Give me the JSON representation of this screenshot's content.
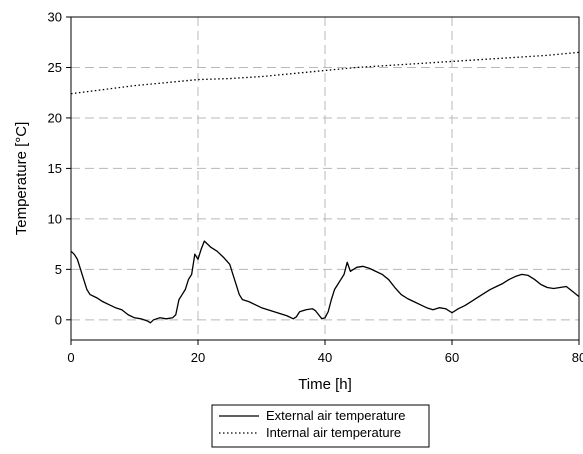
{
  "chart_data": {
    "type": "line",
    "title": "",
    "xlabel": "Time [h]",
    "ylabel": "Temperature [°C]",
    "xlim": [
      0,
      80
    ],
    "ylim": [
      -2,
      30
    ],
    "xticks": [
      0,
      20,
      40,
      60,
      80
    ],
    "yticks": [
      0,
      5,
      10,
      15,
      20,
      25,
      30
    ],
    "grid": true,
    "legend_position": "bottom-center",
    "series": [
      {
        "name": "External air temperature",
        "line_style": "solid",
        "color": "#000000",
        "x": [
          0,
          0.5,
          1,
          1.5,
          2,
          2.5,
          3,
          4,
          5,
          6,
          7,
          8,
          9,
          10,
          11,
          12,
          12.5,
          13,
          14,
          15,
          16,
          16.5,
          17,
          17.5,
          18,
          18.5,
          19,
          19.5,
          20,
          20.5,
          21,
          21.5,
          22,
          23,
          24,
          25,
          25.5,
          26,
          26.5,
          27,
          28,
          29,
          30,
          31,
          32,
          33,
          34,
          35,
          35.5,
          36,
          37,
          38,
          38.5,
          39,
          39.5,
          40,
          40.5,
          41,
          41.5,
          42,
          42.5,
          43,
          43.5,
          44,
          45,
          46,
          47,
          48,
          49,
          50,
          51,
          52,
          53,
          54,
          55,
          56,
          57,
          58,
          59,
          60,
          61,
          62,
          63,
          64,
          65,
          66,
          67,
          68,
          69,
          70,
          71,
          72,
          73,
          74,
          75,
          76,
          77,
          78,
          79,
          80
        ],
        "y": [
          6.8,
          6.5,
          6.0,
          5.0,
          4.0,
          3.0,
          2.5,
          2.2,
          1.8,
          1.5,
          1.2,
          1.0,
          0.5,
          0.2,
          0.1,
          -0.1,
          -0.3,
          0.0,
          0.2,
          0.1,
          0.2,
          0.5,
          2.0,
          2.5,
          3.0,
          4.0,
          4.5,
          6.5,
          6.0,
          7.0,
          7.8,
          7.5,
          7.2,
          6.8,
          6.2,
          5.5,
          4.5,
          3.5,
          2.5,
          2.0,
          1.8,
          1.5,
          1.2,
          1.0,
          0.8,
          0.6,
          0.4,
          0.1,
          0.3,
          0.8,
          1.0,
          1.1,
          0.9,
          0.5,
          0.1,
          0.2,
          0.8,
          2.0,
          3.0,
          3.5,
          4.0,
          4.5,
          5.7,
          4.8,
          5.2,
          5.3,
          5.1,
          4.8,
          4.5,
          4.0,
          3.2,
          2.5,
          2.1,
          1.8,
          1.5,
          1.2,
          1.0,
          1.2,
          1.1,
          0.7,
          1.1,
          1.4,
          1.8,
          2.2,
          2.6,
          3.0,
          3.3,
          3.6,
          4.0,
          4.3,
          4.5,
          4.4,
          4.0,
          3.5,
          3.2,
          3.1,
          3.2,
          3.3,
          2.8,
          2.3
        ]
      },
      {
        "name": "Internal air temperature",
        "line_style": "dotted",
        "color": "#000000",
        "x": [
          0,
          5,
          10,
          15,
          20,
          25,
          30,
          35,
          40,
          45,
          50,
          55,
          60,
          65,
          70,
          75,
          80
        ],
        "y": [
          22.4,
          22.8,
          23.2,
          23.5,
          23.8,
          23.9,
          24.1,
          24.4,
          24.7,
          25.0,
          25.2,
          25.4,
          25.6,
          25.8,
          26.0,
          26.2,
          26.5
        ]
      }
    ]
  }
}
